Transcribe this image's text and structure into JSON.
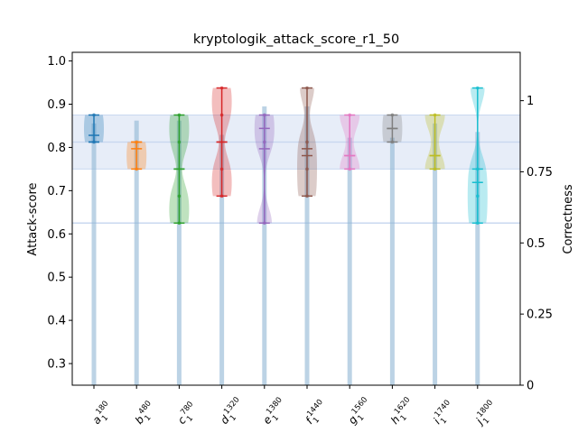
{
  "chart_data": {
    "type": "violin",
    "title": "kryptologik_attack_score_r1_50",
    "ylabel": "Attack-score",
    "y2label": "Correctness",
    "ylim": [
      0.25,
      1.02
    ],
    "y2lim": [
      0,
      1.17
    ],
    "yticks": [
      "0.3",
      "0.4",
      "0.5",
      "0.6",
      "0.7",
      "0.8",
      "0.9",
      "1.0"
    ],
    "y2ticks": [
      "0",
      "0.25",
      "0.5",
      "0.75",
      "1"
    ],
    "bands": [
      {
        "lo": 0.75,
        "hi": 0.875
      },
      {
        "lo": 0.8125,
        "hi": 0.8125
      },
      {
        "lo": 0.625,
        "hi": 0.625
      }
    ],
    "categories": [
      {
        "label": "a",
        "sup": "180",
        "sub": "1"
      },
      {
        "label": "b",
        "sup": "480",
        "sub": "1"
      },
      {
        "label": "c",
        "sup": "780",
        "sub": "1"
      },
      {
        "label": "d",
        "sup": "1320",
        "sub": "1"
      },
      {
        "label": "e",
        "sup": "1380",
        "sub": "1"
      },
      {
        "label": "f",
        "sup": "1440",
        "sub": "1"
      },
      {
        "label": "g",
        "sup": "1560",
        "sub": "1"
      },
      {
        "label": "h",
        "sup": "1620",
        "sub": "1"
      },
      {
        "label": "i",
        "sup": "1740",
        "sub": "1"
      },
      {
        "label": "j",
        "sup": "1800",
        "sub": "1"
      }
    ],
    "series": [
      {
        "name": "a",
        "color": "#1f77b4",
        "min": 0.8125,
        "max": 0.875,
        "median": 0.8125,
        "mean": 0.828,
        "points": [
          0.875,
          0.8125
        ]
      },
      {
        "name": "b",
        "color": "#ff7f0e",
        "min": 0.75,
        "max": 0.8125,
        "median": 0.8125,
        "mean": 0.797,
        "points": [
          0.8125,
          0.75
        ]
      },
      {
        "name": "c",
        "color": "#2ca02c",
        "min": 0.625,
        "max": 0.875,
        "median": 0.75,
        "mean": 0.75,
        "points": [
          0.875,
          0.8125,
          0.6875,
          0.625
        ]
      },
      {
        "name": "d",
        "color": "#d62728",
        "min": 0.6875,
        "max": 0.9375,
        "median": 0.8125,
        "mean": 0.8125,
        "points": [
          0.9375,
          0.875,
          0.75,
          0.6875
        ]
      },
      {
        "name": "e",
        "color": "#9467bd",
        "min": 0.625,
        "max": 0.875,
        "median": 0.7969,
        "mean": 0.844,
        "points": [
          0.875,
          0.8125,
          0.625
        ]
      },
      {
        "name": "f",
        "color": "#8c564b",
        "min": 0.6875,
        "max": 0.9375,
        "median": 0.797,
        "mean": 0.781,
        "points": [
          0.9375,
          0.8125,
          0.75,
          0.6875
        ]
      },
      {
        "name": "g",
        "color": "#e377c2",
        "min": 0.75,
        "max": 0.875,
        "median": 0.781,
        "mean": 0.781,
        "points": [
          0.875,
          0.75
        ]
      },
      {
        "name": "h",
        "color": "#7f7f7f",
        "min": 0.8125,
        "max": 0.875,
        "median": 0.8438,
        "mean": 0.8438,
        "points": [
          0.875,
          0.8125
        ]
      },
      {
        "name": "i",
        "color": "#bcbd22",
        "min": 0.75,
        "max": 0.875,
        "median": 0.781,
        "mean": 0.781,
        "points": [
          0.875,
          0.75
        ]
      },
      {
        "name": "j",
        "color": "#17becf",
        "min": 0.625,
        "max": 0.9375,
        "median": 0.75,
        "mean": 0.719,
        "points": [
          0.9375,
          0.75,
          0.6875,
          0.625
        ]
      }
    ],
    "correctness": [
      0.92,
      0.93,
      0.93,
      0.88,
      0.98,
      0.98,
      0.87,
      0.87,
      0.92,
      0.89
    ],
    "colors": {
      "band": "#c9d8f0",
      "correctness_bar": "#8fb5d3"
    }
  }
}
